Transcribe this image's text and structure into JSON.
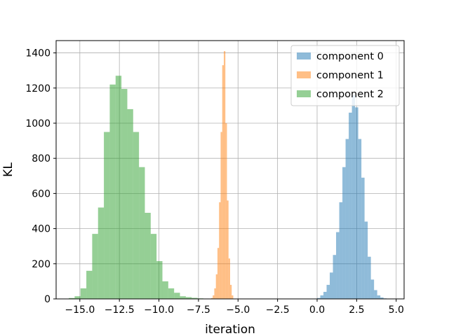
{
  "chart_data": {
    "type": "histogram",
    "xlabel": "iteration",
    "ylabel": "KL",
    "xlim": [
      -16.5,
      5.5
    ],
    "ylim": [
      0,
      1470
    ],
    "x_ticks": [
      -15.0,
      -12.5,
      -10.0,
      -7.5,
      -5.0,
      -2.5,
      0.0,
      2.5,
      5.0
    ],
    "x_tick_labels": [
      "−15.0",
      "−12.5",
      "−10.0",
      "−7.5",
      "−5.0",
      "−2.5",
      "0.0",
      "2.5",
      "5.0"
    ],
    "y_ticks": [
      0,
      200,
      400,
      600,
      800,
      1000,
      1200,
      1400
    ],
    "y_tick_labels": [
      "0",
      "200",
      "400",
      "600",
      "800",
      "1000",
      "1200",
      "1400"
    ],
    "grid": true,
    "legend_position": "top-right",
    "series": [
      {
        "name": "component 2",
        "color": "#2ca02c",
        "alpha": 0.5,
        "bin_edges": [
          -15.7,
          -15.33,
          -14.96,
          -14.59,
          -14.22,
          -13.85,
          -13.48,
          -13.11,
          -12.74,
          -12.37,
          -12.0,
          -11.63,
          -11.26,
          -10.89,
          -10.52,
          -10.15,
          -9.78,
          -9.41,
          -9.04,
          -8.67,
          -8.3,
          -7.93,
          -7.56,
          -7.19,
          -6.82,
          -6.45
        ],
        "counts": [
          5,
          15,
          60,
          160,
          370,
          520,
          950,
          1220,
          1270,
          1195,
          1080,
          950,
          750,
          490,
          370,
          215,
          100,
          60,
          35,
          15,
          10,
          6,
          3,
          2,
          1
        ]
      },
      {
        "name": "component 1",
        "color": "#ff7f0e",
        "alpha": 0.5,
        "bin_edges": [
          -6.7,
          -6.6,
          -6.5,
          -6.4,
          -6.3,
          -6.2,
          -6.1,
          -6.0,
          -5.9,
          -5.8,
          -5.7,
          -5.6,
          -5.5,
          -5.4,
          -5.3
        ],
        "counts": [
          5,
          20,
          60,
          140,
          290,
          550,
          950,
          1330,
          1410,
          1000,
          560,
          230,
          80,
          20,
          5
        ]
      },
      {
        "name": "component 0",
        "color": "#1f77b4",
        "alpha": 0.5,
        "bin_edges": [
          0.0,
          0.2,
          0.4,
          0.6,
          0.8,
          1.0,
          1.2,
          1.4,
          1.6,
          1.8,
          2.0,
          2.2,
          2.4,
          2.6,
          2.8,
          3.0,
          3.2,
          3.4,
          3.6,
          3.8,
          4.0,
          4.2,
          4.4
        ],
        "counts": [
          5,
          20,
          40,
          80,
          150,
          250,
          380,
          550,
          750,
          910,
          1060,
          1160,
          1090,
          910,
          690,
          440,
          240,
          110,
          50,
          20,
          8,
          3
        ]
      }
    ]
  }
}
